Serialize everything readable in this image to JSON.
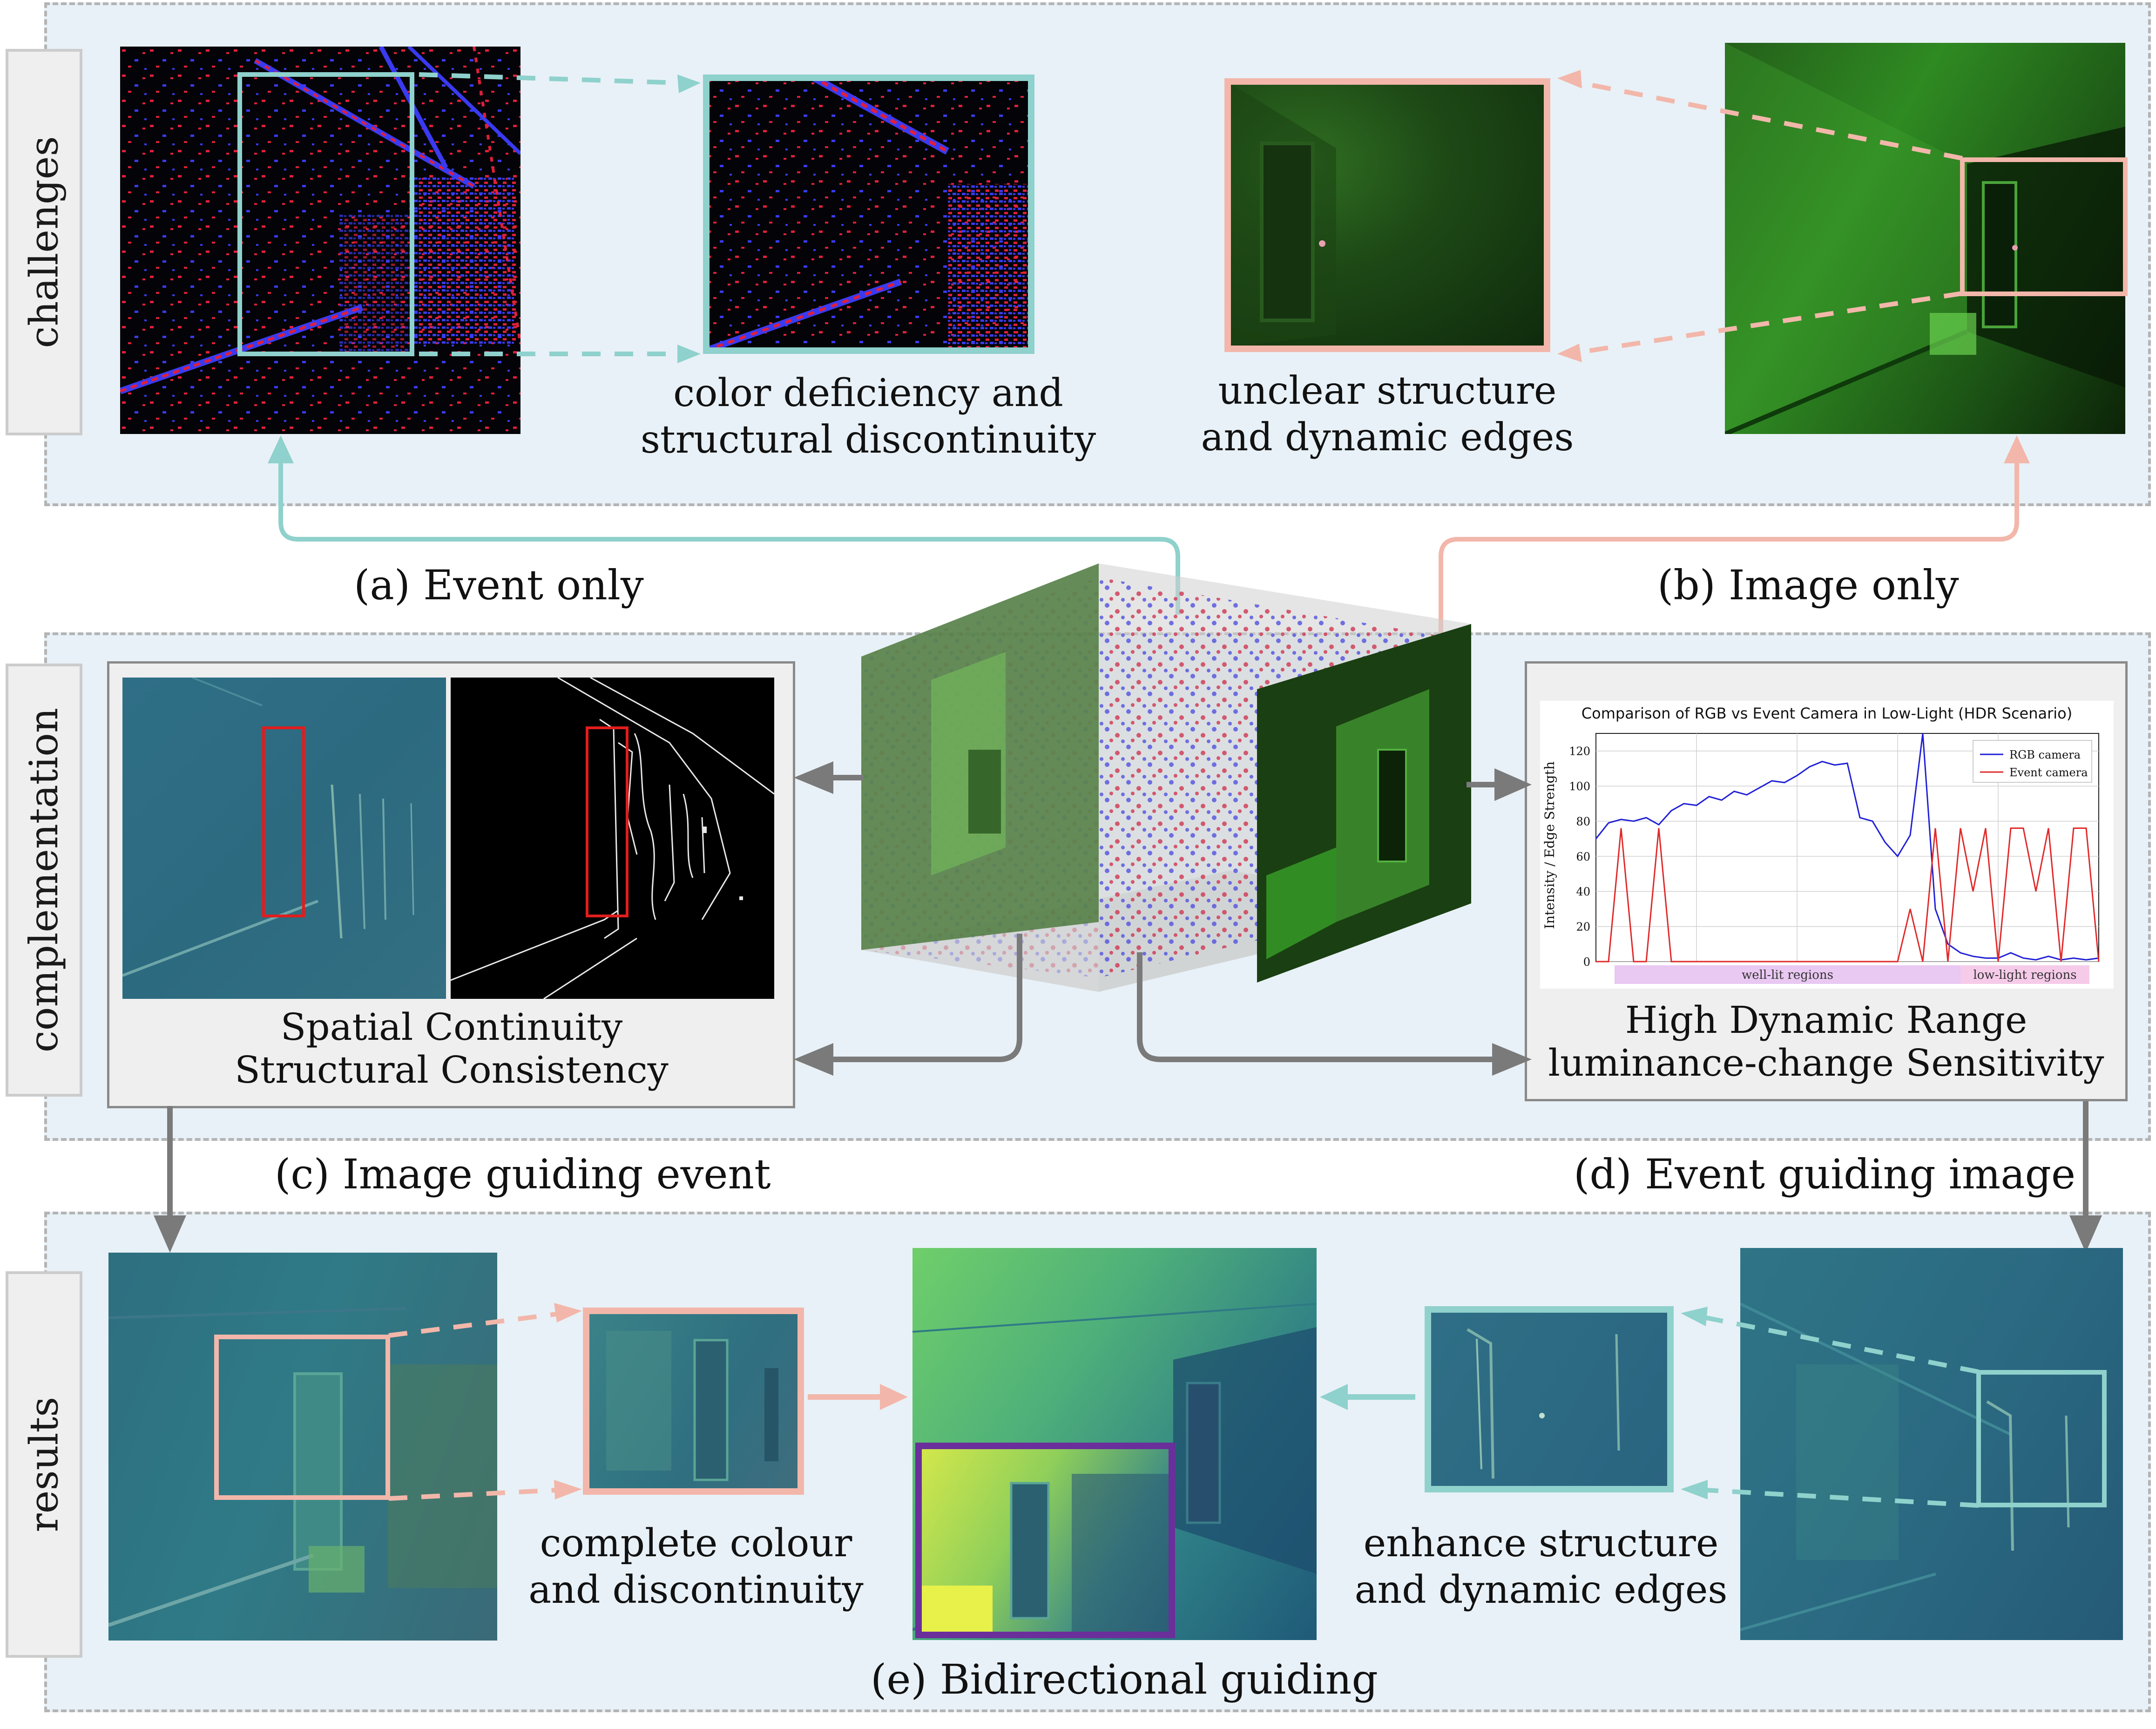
{
  "rows": {
    "challenges": "challenges",
    "complementation": "complementation",
    "results": "results"
  },
  "captions": {
    "event_only": "(a) Event only",
    "image_only": "(b) Image only",
    "image_guiding_event": "(c) Image guiding event",
    "event_guiding_image": "(d) Event guiding image",
    "bidirectional": "(e) Bidirectional guiding"
  },
  "notes": {
    "event_line1": "color deficiency and",
    "event_line2": "structural discontinuity",
    "image_line1": "unclear structure",
    "image_line2": "and dynamic edges",
    "panel_c_line1": "Spatial Continuity",
    "panel_c_line2": "Structural Consistency",
    "panel_d_line1": "High Dynamic Range",
    "panel_d_line2": "luminance-change Sensitivity",
    "result_left_line1": "complete colour",
    "result_left_line2": "and discontinuity",
    "result_right_line1": "enhance structure",
    "result_right_line2": "and dynamic edges"
  },
  "colors": {
    "teal": "#8fd1cc",
    "salmon": "#f2b7aa",
    "purple": "#6a2f9a",
    "red_box": "#e11d1d",
    "band": "#e8f1f7",
    "arrow_gray": "#7a7a7a"
  },
  "chart_data": {
    "type": "line",
    "title": "Comparison of RGB vs Event Camera in Low-Light (HDR Scenario)",
    "xlabel": "",
    "ylabel": "Intensity / Edge Strength",
    "ylim": [
      0,
      130
    ],
    "yticks": [
      0,
      20,
      40,
      60,
      80,
      100,
      120
    ],
    "grid": true,
    "legend_position": "top-right",
    "x": [
      0,
      5,
      10,
      15,
      20,
      25,
      30,
      35,
      40,
      45,
      50,
      55,
      60,
      65,
      70,
      75,
      80,
      85,
      90,
      95,
      100,
      105,
      110,
      115,
      120,
      125,
      130,
      135,
      140,
      145,
      150,
      155,
      160,
      165,
      170,
      175,
      180,
      185,
      190,
      195,
      200
    ],
    "series": [
      {
        "name": "RGB camera",
        "color": "#1f1fd6",
        "values": [
          70,
          79,
          81,
          80,
          82,
          78,
          86,
          90,
          89,
          94,
          92,
          97,
          95,
          99,
          103,
          102,
          106,
          111,
          114,
          112,
          113,
          82,
          80,
          68,
          60,
          72,
          130,
          30,
          10,
          5,
          3,
          2,
          2,
          5,
          2,
          1,
          3,
          1,
          2,
          1,
          2
        ]
      },
      {
        "name": "Event camera",
        "color": "#e02a2a",
        "values": [
          0,
          0,
          76,
          0,
          0,
          76,
          0,
          0,
          0,
          0,
          0,
          0,
          0,
          0,
          0,
          0,
          0,
          0,
          0,
          0,
          0,
          0,
          0,
          0,
          0,
          30,
          0,
          76,
          0,
          76,
          40,
          76,
          0,
          76,
          76,
          40,
          76,
          0,
          76,
          76,
          0
        ]
      }
    ],
    "regions": [
      {
        "label": "well-lit regions",
        "color": "#e9c8f2"
      },
      {
        "label": "low-light regions",
        "color": "#f6cbe9"
      }
    ]
  }
}
